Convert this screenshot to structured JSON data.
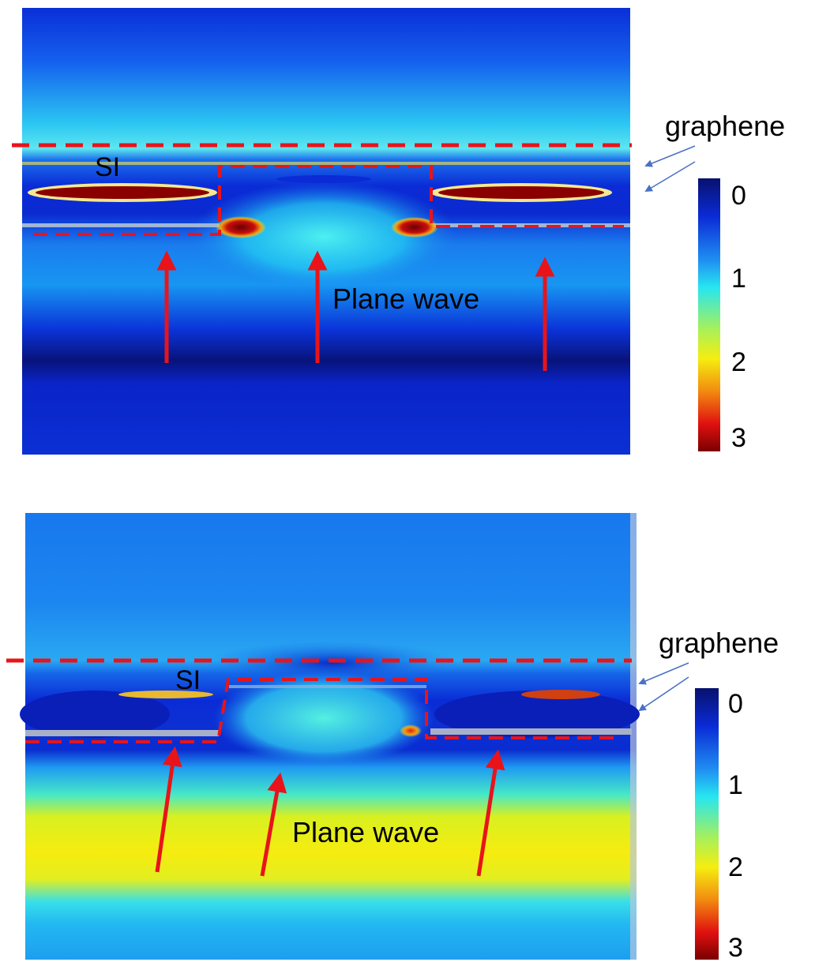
{
  "panels": [
    {
      "structure_label": "SI",
      "wave_label": "Plane wave",
      "material_label": "graphene",
      "colorbar_ticks": [
        "0",
        "1",
        "2",
        "3"
      ]
    },
    {
      "structure_label": "SI",
      "wave_label": "Plane wave",
      "material_label": "graphene",
      "colorbar_ticks": [
        "0",
        "1",
        "2",
        "3"
      ]
    }
  ],
  "colors": {
    "annotation_red": "#e8141a",
    "pointer_blue": "#4a72c4",
    "colormap": [
      "#08116e",
      "#0a2bd6",
      "#1f8ff2",
      "#27e6f0",
      "#f5ee10",
      "#f28a10",
      "#e01010",
      "#7a0000"
    ]
  }
}
